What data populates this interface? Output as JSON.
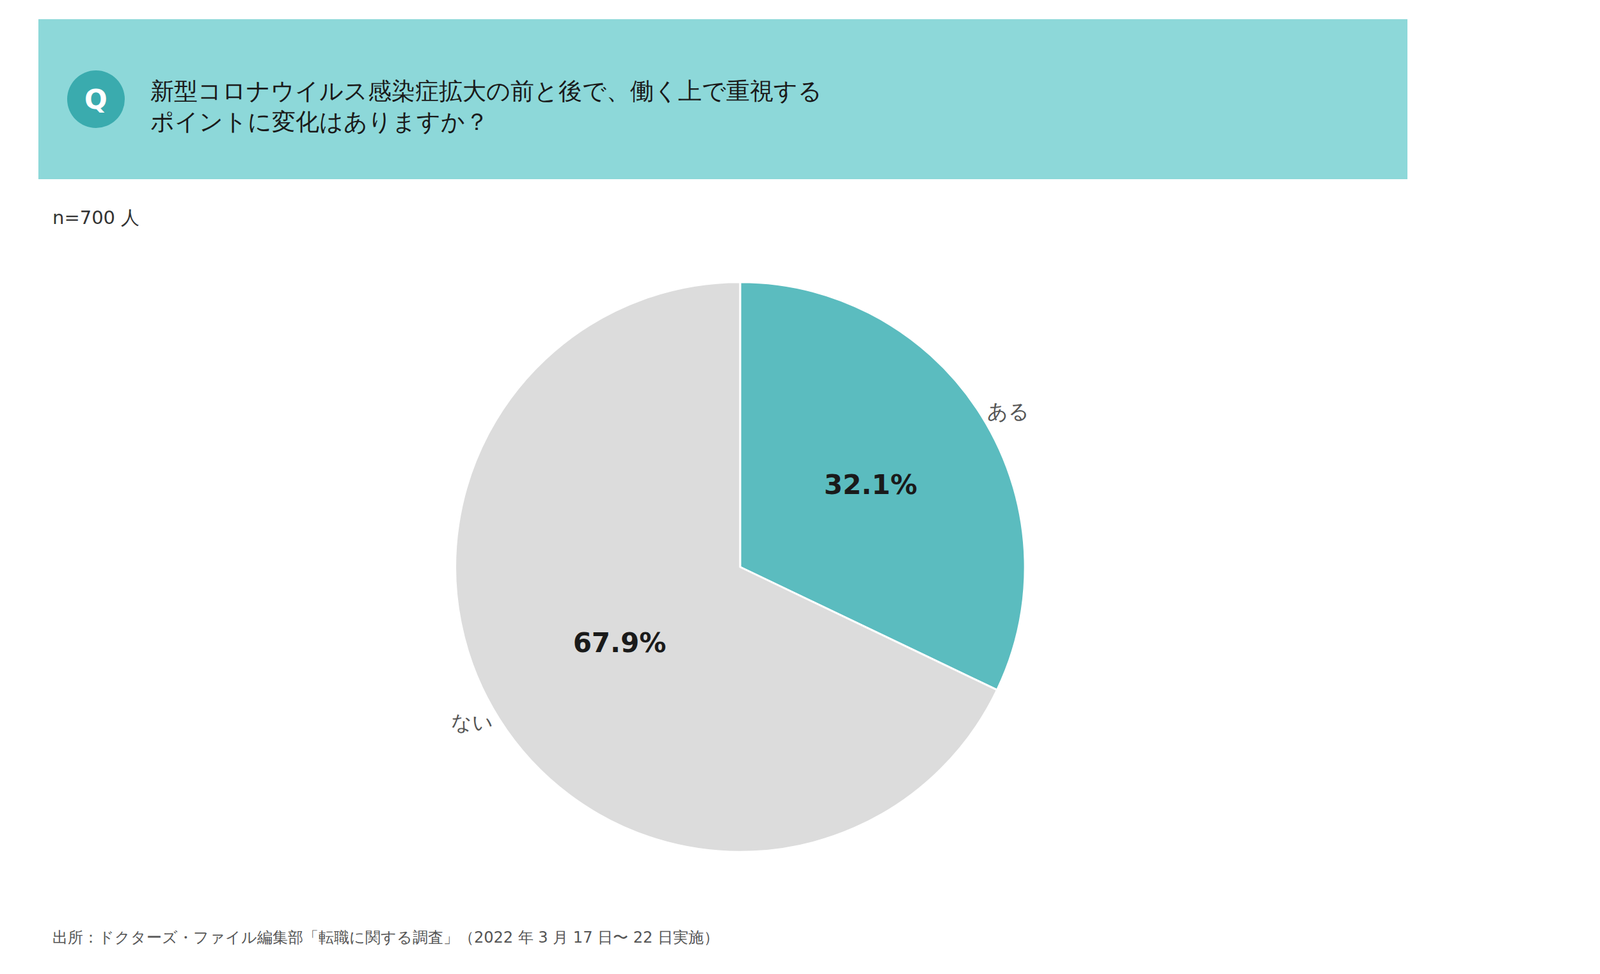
{
  "chart_data": {
    "type": "pie",
    "title": "新型コロナウイルス感染症拡大の前と後で、働く上で重視する\nポイントに変化はありますか？",
    "subtitle": "n=700 人",
    "annotations": [
      "Q",
      "出所：ドクターズ・ファイル編集部「転職に関する調査」（2022 年 3 月 17 日〜 22 日実施）"
    ],
    "categories": [
      "ある",
      "ない"
    ],
    "values": [
      32.1,
      67.9
    ],
    "value_labels": [
      "32.1%",
      "67.9%"
    ],
    "colors": [
      "#5BBCBF",
      "#DCDCDC"
    ],
    "data_labels": true
  }
}
